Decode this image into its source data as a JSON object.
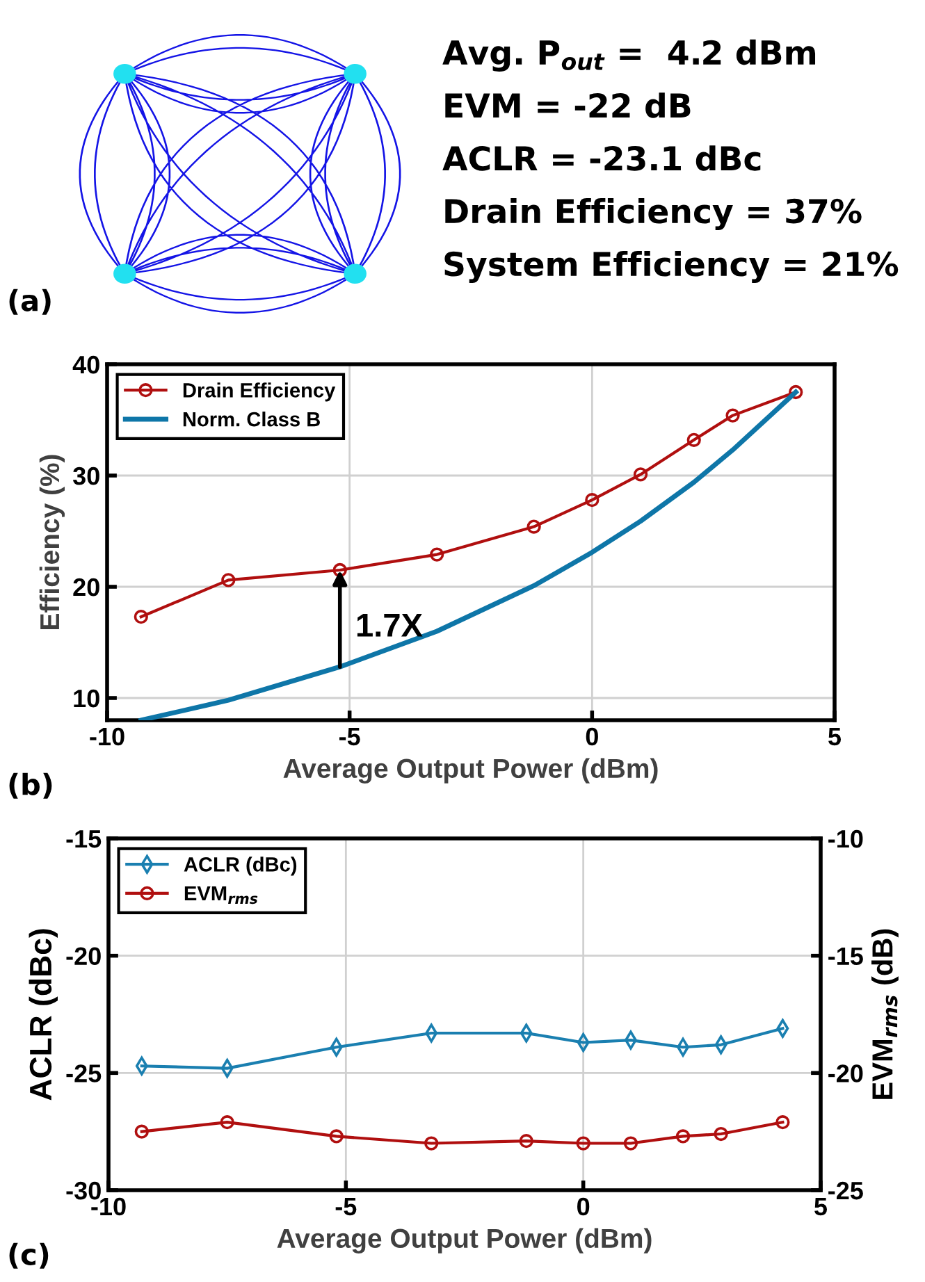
{
  "chart_data": [
    {
      "type": "other",
      "annotations": [
        "(a)",
        "Avg. P$_{out}$ =  4.2 dBm",
        "EVM = -22 dB",
        "ACLR = -23.1 dBc",
        "Drain Efficiency = 37%",
        "System Efficiency = 21%"
      ]
    },
    {
      "type": "line",
      "xlabel": "Average Output Power (dBm)",
      "ylabel": "Efficiency (%)",
      "xlim": [
        -10,
        5
      ],
      "xticks": [
        -10,
        -5,
        0,
        5
      ],
      "ylim": [
        8,
        40
      ],
      "yticks": [
        10,
        20,
        30,
        40
      ],
      "grid": true,
      "legend": "top left",
      "annotations": [
        "(b)",
        {
          "text": "1.7X",
          "x": -5.2,
          "y": 21.5
        }
      ],
      "series": [
        {
          "name": "Drain Efficiency",
          "color": "#b00f0f",
          "marker": "circle",
          "x": [
            -9.3,
            -7.5,
            -5.2,
            -3.2,
            -1.2,
            0,
            1.0,
            2.1,
            2.9,
            4.2
          ],
          "values": [
            17.3,
            20.6,
            21.5,
            22.9,
            25.4,
            27.8,
            30.1,
            33.2,
            35.4,
            37.5
          ]
        },
        {
          "name": "Norm. Class B",
          "color": "#0e76a8",
          "marker": "none",
          "x": [
            -9.3,
            -7.5,
            -5.2,
            -3.2,
            -1.2,
            0,
            1.0,
            2.1,
            2.9,
            4.2
          ],
          "values": [
            8.0,
            9.8,
            12.8,
            16.0,
            20.1,
            23.1,
            25.9,
            29.4,
            32.3,
            37.5
          ]
        }
      ]
    },
    {
      "type": "line",
      "xlabel": "Average Output Power (dBm)",
      "ylabel": "ACLR (dBc)",
      "y2label": "EVM$_{rms}$ (dB)",
      "xlim": [
        -10,
        5
      ],
      "xticks": [
        -10,
        -5,
        0,
        5
      ],
      "ylim": [
        -30,
        -15
      ],
      "yticks": [
        -30,
        -25,
        -20,
        -15
      ],
      "y2lim": [
        -25,
        -10
      ],
      "y2ticks": [
        -25,
        -20,
        -15,
        -10
      ],
      "grid": true,
      "legend": "top left",
      "annotations": [
        "(c)"
      ],
      "series": [
        {
          "name": "ACLR (dBc)",
          "color": "#1a7fb0",
          "marker": "diamond",
          "x": [
            -9.3,
            -7.5,
            -5.2,
            -3.2,
            -1.2,
            0,
            1.0,
            2.1,
            2.9,
            4.2
          ],
          "values": [
            -24.7,
            -24.8,
            -23.9,
            -23.3,
            -23.3,
            -23.7,
            -23.6,
            -23.9,
            -23.8,
            -23.1
          ]
        },
        {
          "name": "EVM$_{rms}$",
          "color": "#b00f0f",
          "marker": "circle",
          "axis": "y2",
          "x": [
            -9.3,
            -7.5,
            -5.2,
            -3.2,
            -1.2,
            0,
            1.0,
            2.1,
            2.9,
            4.2
          ],
          "values": [
            -22.5,
            -22.1,
            -22.7,
            -23.0,
            -22.9,
            -23.0,
            -23.0,
            -22.7,
            -22.6,
            -22.1
          ]
        }
      ]
    }
  ]
}
